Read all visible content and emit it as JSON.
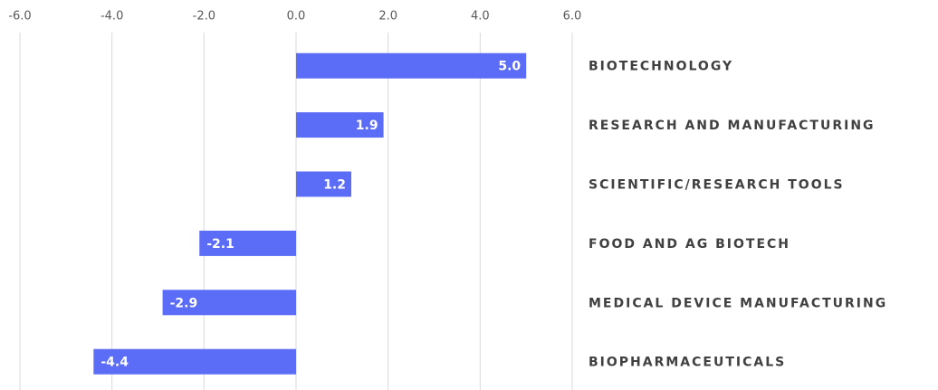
{
  "chart_data": {
    "type": "bar",
    "orientation": "horizontal",
    "categories": [
      "BIOTECHNOLOGY",
      "RESEARCH AND MANUFACTURING",
      "SCIENTIFIC/RESEARCH TOOLS",
      "FOOD AND AG BIOTECH",
      "MEDICAL DEVICE MANUFACTURING",
      "BIOPHARMACEUTICALS"
    ],
    "values": [
      5.0,
      1.9,
      1.2,
      -2.1,
      -2.9,
      -4.4
    ],
    "value_labels": [
      "5.0",
      "1.9",
      "1.2",
      "-2.1",
      "-2.9",
      "-4.4"
    ],
    "color": "#5b6cf6",
    "xlim": [
      -6,
      6
    ],
    "xticks": [
      {
        "value": -6,
        "label": "-6.0"
      },
      {
        "value": -4,
        "label": "-4.0"
      },
      {
        "value": -2,
        "label": "-2.0"
      },
      {
        "value": 0,
        "label": "0.0"
      },
      {
        "value": 2,
        "label": "2.0"
      },
      {
        "value": 4,
        "label": "4.0"
      },
      {
        "value": 6,
        "label": "6.0"
      }
    ],
    "grid": true
  }
}
